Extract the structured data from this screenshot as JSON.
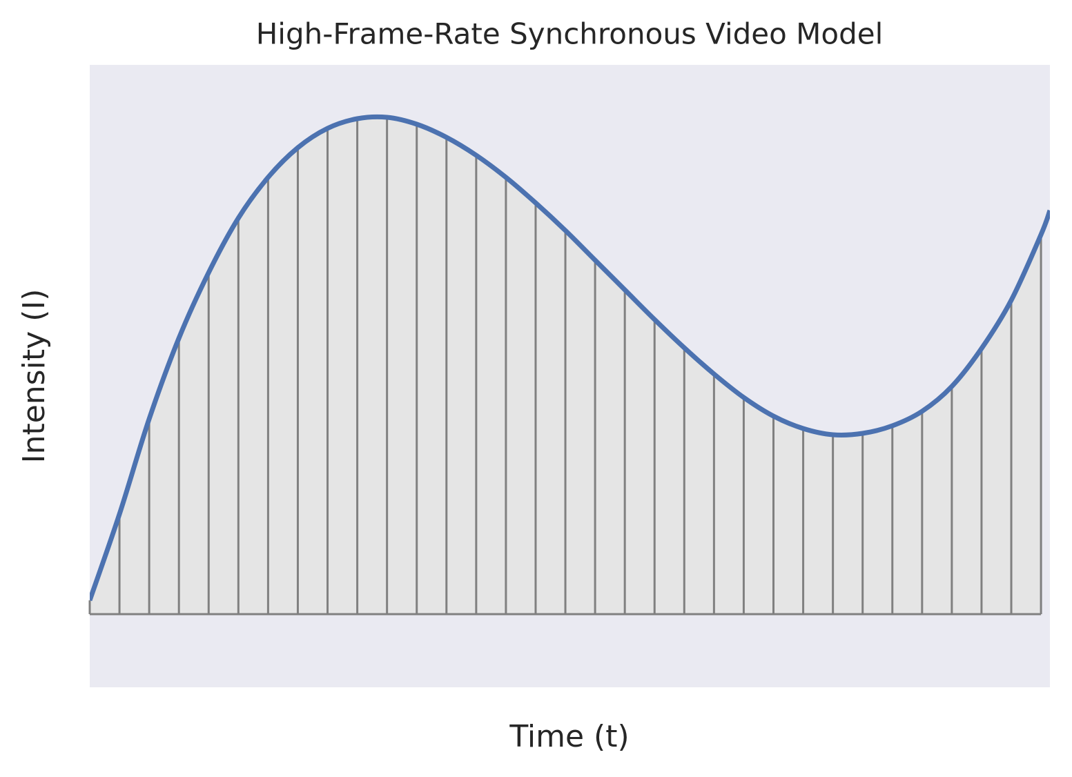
{
  "chart_data": {
    "type": "stem-line",
    "title": "High-Frame-Rate Synchronous Video Model",
    "xlabel": "Time (t)",
    "ylabel": "Intensity (I)",
    "xlim": [
      0,
      32.3
    ],
    "ylim": [
      -1.06,
      7.96
    ],
    "background": "#eaeaf2",
    "curve": {
      "color": "#4c72b0",
      "x": [
        0,
        1,
        2,
        3,
        4,
        5,
        6,
        7,
        8,
        9,
        10,
        11,
        12,
        13,
        14,
        15,
        16,
        17,
        18,
        19,
        20,
        21,
        22,
        23,
        24,
        25,
        26,
        27,
        28,
        29,
        30,
        31,
        32,
        32.3
      ],
      "values": [
        0.2,
        1.45,
        2.83,
        4.0,
        4.95,
        5.74,
        6.33,
        6.76,
        7.04,
        7.18,
        7.2,
        7.1,
        6.91,
        6.65,
        6.33,
        5.96,
        5.56,
        5.13,
        4.7,
        4.27,
        3.86,
        3.48,
        3.14,
        2.87,
        2.69,
        2.6,
        2.62,
        2.73,
        2.94,
        3.3,
        3.85,
        4.55,
        5.5,
        5.85
      ]
    },
    "samples": {
      "color": "#808080",
      "fill": "#e5e5e5",
      "x": [
        0,
        1,
        2,
        3,
        4,
        5,
        6,
        7,
        8,
        9,
        10,
        11,
        12,
        13,
        14,
        15,
        16,
        17,
        18,
        19,
        20,
        21,
        22,
        23,
        24,
        25,
        26,
        27,
        28,
        29,
        30,
        31,
        32
      ],
      "values": [
        0.2,
        1.45,
        2.83,
        4.0,
        4.95,
        5.74,
        6.33,
        6.76,
        7.04,
        7.18,
        7.2,
        7.1,
        6.91,
        6.65,
        6.33,
        5.96,
        5.56,
        5.13,
        4.7,
        4.27,
        3.86,
        3.48,
        3.14,
        2.87,
        2.69,
        2.6,
        2.62,
        2.73,
        2.94,
        3.3,
        3.85,
        4.55,
        5.5
      ]
    }
  }
}
